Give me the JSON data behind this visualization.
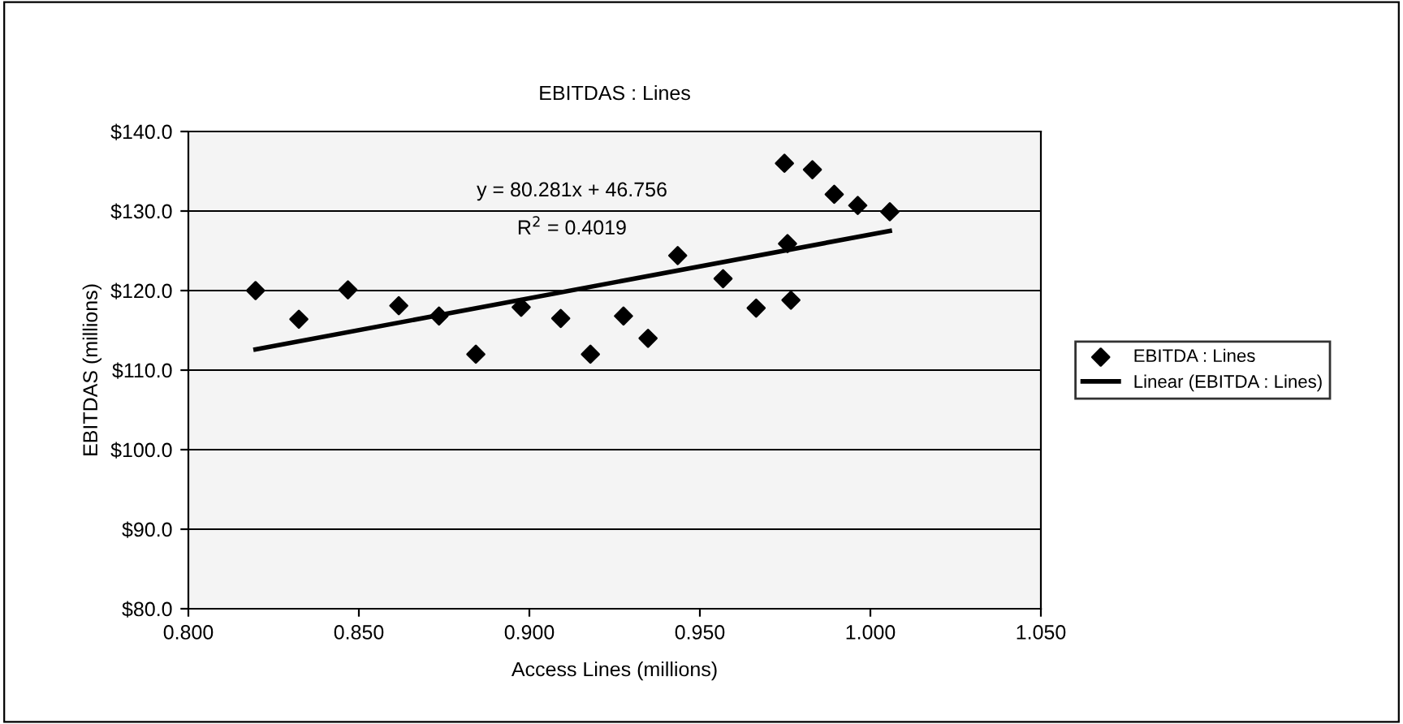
{
  "chart_data": {
    "type": "scatter",
    "title": "EBITDAS : Lines",
    "xlabel": "Access Lines (millions)",
    "ylabel": "EBITDAS (millions)",
    "xlim": [
      0.8,
      1.05
    ],
    "xticks": [
      {
        "value": 0.8,
        "label": "0.800"
      },
      {
        "value": 0.85,
        "label": "0.850"
      },
      {
        "value": 0.9,
        "label": "0.900"
      },
      {
        "value": 0.95,
        "label": "0.950"
      },
      {
        "value": 1.0,
        "label": "1.000"
      },
      {
        "value": 1.05,
        "label": "1.050"
      }
    ],
    "ylim": [
      80,
      140
    ],
    "yticks": [
      {
        "value": 80,
        "label": "$80.0"
      },
      {
        "value": 90,
        "label": "$90.0"
      },
      {
        "value": 100,
        "label": "$100.0"
      },
      {
        "value": 110,
        "label": "$110.0"
      },
      {
        "value": 120,
        "label": "$120.0"
      },
      {
        "value": 130,
        "label": "$130.0"
      },
      {
        "value": 140,
        "label": "$140.0"
      }
    ],
    "grid": "y",
    "legend": "right",
    "marker": "diamond",
    "annotations": [
      "y = 80.281x + 46.756",
      "R$^{2}$ = 0.4019"
    ],
    "series": [
      {
        "name": "EBITDA : Lines",
        "color": "#000000",
        "x": [
          0.8197,
          0.8324,
          0.8468,
          0.8617,
          0.8735,
          0.8843,
          0.8976,
          0.9092,
          0.9179,
          0.9276,
          0.9348,
          0.9435,
          0.9568,
          0.9665,
          0.9748,
          0.9757,
          0.9767,
          0.983,
          0.9894,
          0.9963,
          1.0057
        ],
        "values": [
          120.0,
          116.4,
          120.1,
          118.1,
          116.8,
          112.0,
          117.9,
          116.5,
          112.0,
          116.8,
          114.0,
          124.4,
          121.5,
          117.8,
          136.0,
          125.9,
          118.8,
          135.2,
          132.1,
          130.7,
          129.9
        ]
      },
      {
        "name": "Linear (EBITDA : Lines)",
        "type": "line",
        "color": "#000000",
        "line_style": "solid",
        "marker": "none",
        "x": [
          0.8197,
          1.0057
        ],
        "values": [
          112.6,
          127.5
        ]
      }
    ]
  }
}
